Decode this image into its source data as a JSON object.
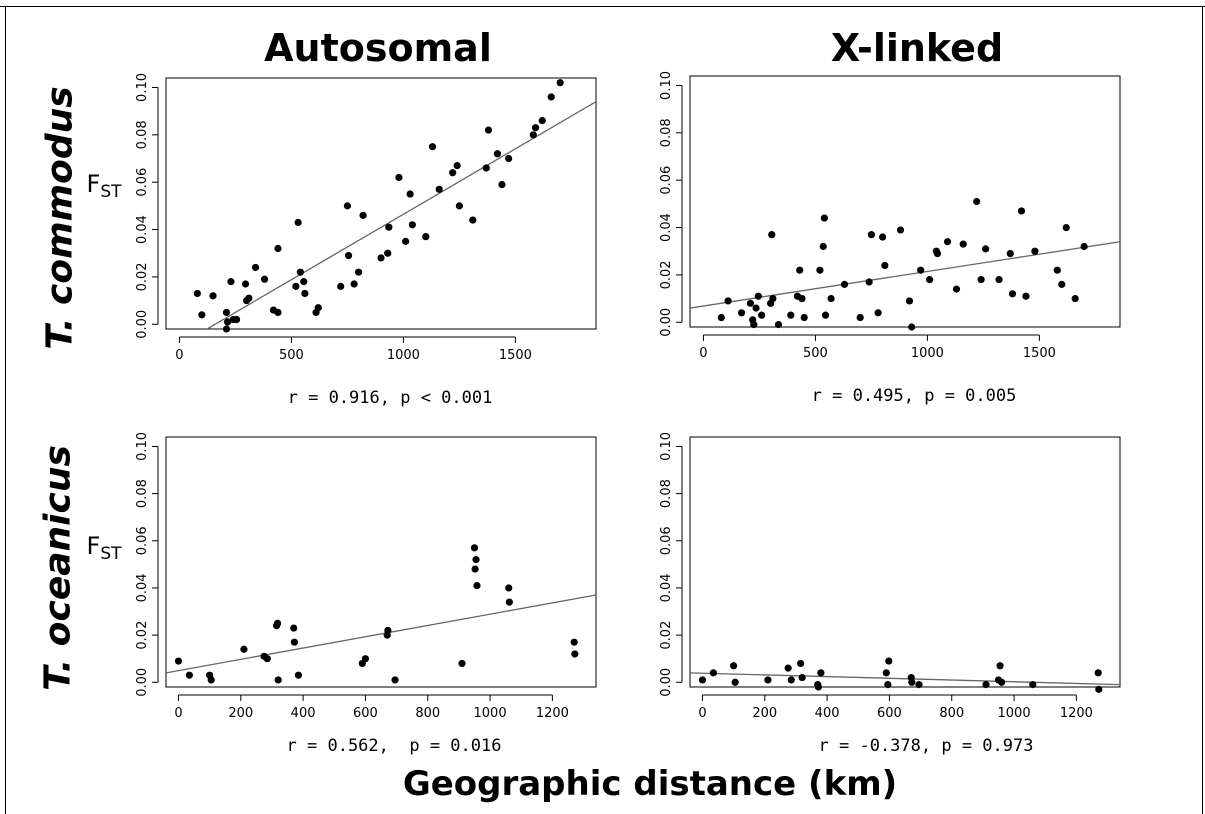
{
  "headers": {
    "col_autosomal": "Autosomal",
    "col_xlinked": "X-linked",
    "row_commodus": "T. commodus",
    "row_oceanicus": "T. oceanicus",
    "ylabel_main": "F",
    "ylabel_sub": "ST",
    "xlabel": "Geographic distance (km)"
  },
  "chart_data": [
    {
      "type": "scatter",
      "panel": "commodus-autosomal",
      "stat_label": "r = 0.916, p < 0.001",
      "xlim": [
        -60,
        1860
      ],
      "ylim": [
        -0.002,
        0.104
      ],
      "xticks": [
        0,
        500,
        1000,
        1500
      ],
      "yticks": [
        0.0,
        0.02,
        0.04,
        0.06,
        0.08,
        0.1
      ],
      "trend_line": [
        [
          87,
          -0.004
        ],
        [
          1860,
          0.094
        ]
      ],
      "points": [
        [
          80,
          0.013
        ],
        [
          100,
          0.004
        ],
        [
          150,
          0.012
        ],
        [
          210,
          0.005
        ],
        [
          210,
          -0.002
        ],
        [
          215,
          0.001
        ],
        [
          230,
          0.018
        ],
        [
          240,
          0.002
        ],
        [
          255,
          0.002
        ],
        [
          295,
          0.017
        ],
        [
          300,
          0.01
        ],
        [
          310,
          0.011
        ],
        [
          340,
          0.024
        ],
        [
          380,
          0.019
        ],
        [
          420,
          0.006
        ],
        [
          440,
          0.005
        ],
        [
          440,
          0.032
        ],
        [
          520,
          0.016
        ],
        [
          530,
          0.043
        ],
        [
          540,
          0.022
        ],
        [
          555,
          0.018
        ],
        [
          560,
          0.013
        ],
        [
          610,
          0.005
        ],
        [
          620,
          0.007
        ],
        [
          720,
          0.016
        ],
        [
          750,
          0.05
        ],
        [
          755,
          0.029
        ],
        [
          780,
          0.017
        ],
        [
          800,
          0.022
        ],
        [
          820,
          0.046
        ],
        [
          900,
          0.028
        ],
        [
          930,
          0.03
        ],
        [
          935,
          0.041
        ],
        [
          980,
          0.062
        ],
        [
          1010,
          0.035
        ],
        [
          1030,
          0.055
        ],
        [
          1040,
          0.042
        ],
        [
          1100,
          0.037
        ],
        [
          1130,
          0.075
        ],
        [
          1160,
          0.057
        ],
        [
          1220,
          0.064
        ],
        [
          1240,
          0.067
        ],
        [
          1250,
          0.05
        ],
        [
          1310,
          0.044
        ],
        [
          1370,
          0.066
        ],
        [
          1380,
          0.082
        ],
        [
          1420,
          0.072
        ],
        [
          1440,
          0.059
        ],
        [
          1470,
          0.07
        ],
        [
          1580,
          0.08
        ],
        [
          1590,
          0.083
        ],
        [
          1620,
          0.086
        ],
        [
          1660,
          0.096
        ],
        [
          1700,
          0.102
        ]
      ]
    },
    {
      "type": "scatter",
      "panel": "commodus-xlinked",
      "stat_label": "r = 0.495, p = 0.005",
      "xlim": [
        -60,
        1860
      ],
      "ylim": [
        -0.002,
        0.104
      ],
      "xticks": [
        0,
        500,
        1000,
        1500
      ],
      "yticks": [
        0.0,
        0.02,
        0.04,
        0.06,
        0.08,
        0.1
      ],
      "trend_line": [
        [
          -60,
          0.006
        ],
        [
          1860,
          0.034
        ]
      ],
      "points": [
        [
          80,
          0.002
        ],
        [
          110,
          0.009
        ],
        [
          170,
          0.004
        ],
        [
          210,
          0.008
        ],
        [
          220,
          0.001
        ],
        [
          225,
          -0.001
        ],
        [
          235,
          0.006
        ],
        [
          245,
          0.011
        ],
        [
          260,
          0.003
        ],
        [
          300,
          0.008
        ],
        [
          305,
          0.037
        ],
        [
          310,
          0.01
        ],
        [
          335,
          -0.001
        ],
        [
          390,
          0.003
        ],
        [
          420,
          0.011
        ],
        [
          430,
          0.022
        ],
        [
          440,
          0.01
        ],
        [
          450,
          0.002
        ],
        [
          520,
          0.022
        ],
        [
          535,
          0.032
        ],
        [
          540,
          0.044
        ],
        [
          545,
          0.003
        ],
        [
          570,
          0.01
        ],
        [
          630,
          0.016
        ],
        [
          700,
          0.002
        ],
        [
          740,
          0.017
        ],
        [
          750,
          0.037
        ],
        [
          780,
          0.004
        ],
        [
          800,
          0.036
        ],
        [
          810,
          0.024
        ],
        [
          880,
          0.039
        ],
        [
          920,
          0.009
        ],
        [
          930,
          -0.002
        ],
        [
          970,
          0.022
        ],
        [
          1010,
          0.018
        ],
        [
          1040,
          0.03
        ],
        [
          1045,
          0.029
        ],
        [
          1090,
          0.034
        ],
        [
          1130,
          0.014
        ],
        [
          1160,
          0.033
        ],
        [
          1220,
          0.051
        ],
        [
          1240,
          0.018
        ],
        [
          1260,
          0.031
        ],
        [
          1320,
          0.018
        ],
        [
          1370,
          0.029
        ],
        [
          1380,
          0.012
        ],
        [
          1420,
          0.047
        ],
        [
          1440,
          0.011
        ],
        [
          1480,
          0.03
        ],
        [
          1580,
          0.022
        ],
        [
          1600,
          0.016
        ],
        [
          1620,
          0.04
        ],
        [
          1660,
          0.01
        ],
        [
          1700,
          0.032
        ]
      ]
    },
    {
      "type": "scatter",
      "panel": "oceanicus-autosomal",
      "stat_label": "r = 0.562,  p = 0.016",
      "xlim": [
        -40,
        1340
      ],
      "ylim": [
        -0.002,
        0.104
      ],
      "xticks": [
        0,
        200,
        400,
        600,
        800,
        1000,
        1200
      ],
      "yticks": [
        0.0,
        0.02,
        0.04,
        0.06,
        0.08,
        0.1
      ],
      "trend_line": [
        [
          -40,
          0.004
        ],
        [
          1340,
          0.037
        ]
      ],
      "points": [
        [
          0,
          0.009
        ],
        [
          35,
          0.003
        ],
        [
          100,
          0.003
        ],
        [
          105,
          0.001
        ],
        [
          210,
          0.014
        ],
        [
          275,
          0.011
        ],
        [
          285,
          0.01
        ],
        [
          315,
          0.024
        ],
        [
          318,
          0.025
        ],
        [
          320,
          0.001
        ],
        [
          370,
          0.023
        ],
        [
          372,
          0.017
        ],
        [
          385,
          0.003
        ],
        [
          590,
          0.008
        ],
        [
          600,
          0.01
        ],
        [
          670,
          0.02
        ],
        [
          672,
          0.022
        ],
        [
          695,
          0.001
        ],
        [
          910,
          0.008
        ],
        [
          950,
          0.057
        ],
        [
          952,
          0.048
        ],
        [
          955,
          0.052
        ],
        [
          958,
          0.041
        ],
        [
          1060,
          0.04
        ],
        [
          1062,
          0.034
        ],
        [
          1270,
          0.017
        ],
        [
          1272,
          0.012
        ]
      ]
    },
    {
      "type": "scatter",
      "panel": "oceanicus-xlinked",
      "stat_label": "r = -0.378, p = 0.973",
      "xlim": [
        -40,
        1340
      ],
      "ylim": [
        -0.002,
        0.104
      ],
      "xticks": [
        0,
        200,
        400,
        600,
        800,
        1000,
        1200
      ],
      "yticks": [
        0.0,
        0.02,
        0.04,
        0.06,
        0.08,
        0.1
      ],
      "trend_line": [
        [
          -40,
          0.004
        ],
        [
          1340,
          -0.001
        ]
      ],
      "points": [
        [
          0,
          0.001
        ],
        [
          35,
          0.004
        ],
        [
          100,
          0.007
        ],
        [
          105,
          0.0
        ],
        [
          210,
          0.001
        ],
        [
          275,
          0.006
        ],
        [
          285,
          0.001
        ],
        [
          315,
          0.008
        ],
        [
          320,
          0.002
        ],
        [
          370,
          -0.001
        ],
        [
          372,
          -0.002
        ],
        [
          380,
          0.004
        ],
        [
          590,
          0.004
        ],
        [
          595,
          -0.001
        ],
        [
          598,
          0.009
        ],
        [
          670,
          0.002
        ],
        [
          672,
          0.0
        ],
        [
          695,
          -0.001
        ],
        [
          910,
          -0.001
        ],
        [
          950,
          0.001
        ],
        [
          955,
          0.007
        ],
        [
          960,
          0.0
        ],
        [
          1060,
          -0.001
        ],
        [
          1270,
          0.004
        ],
        [
          1272,
          -0.003
        ]
      ]
    }
  ]
}
